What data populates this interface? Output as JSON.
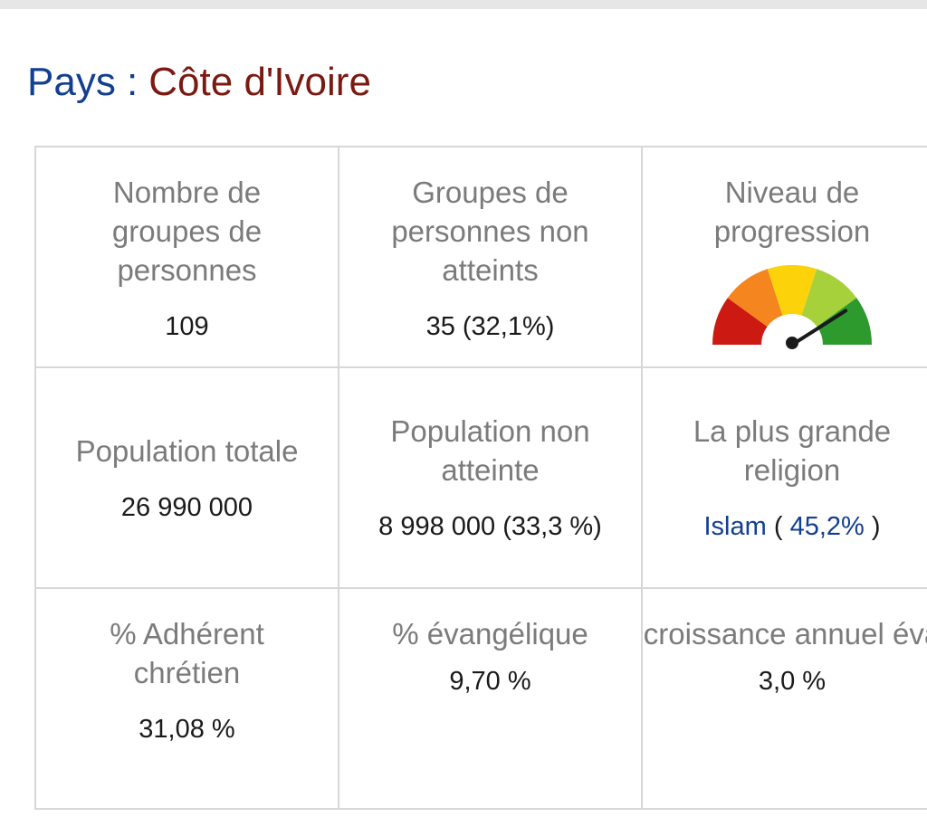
{
  "header": {
    "label": "Pays :",
    "country": "Côte d'Ivoire"
  },
  "stats": {
    "people_groups": {
      "title": "Nombre de\ngroupes de\npersonnes",
      "value": "109"
    },
    "unreached_groups": {
      "title": "Groupes de\npersonnes non\natteints",
      "value": "35 (32,1%)"
    },
    "progress": {
      "title": "Niveau de\nprogression",
      "gauge_level": 0.82,
      "gauge_colors": [
        "#cc1a12",
        "#f5851f",
        "#fcd20b",
        "#a6d13b",
        "#2c9a2c"
      ],
      "needle_color": "#1a1a1a",
      "gauge_icon": "progress-gauge-icon"
    },
    "total_population": {
      "title": "Population totale",
      "value": "26 990 000"
    },
    "unreached_population": {
      "title": "Population non\natteinte",
      "value": "8 998 000 (33,3 %)"
    },
    "largest_religion": {
      "title": "La plus grande\nreligion",
      "religion": "Islam",
      "open_paren": "(",
      "percent": "45,2%",
      "close_paren": ")"
    },
    "christian_adherent": {
      "title": "% Adhérent\nchrétien",
      "value": "31,08 %"
    },
    "evangelical": {
      "title": "% évangélique",
      "value": "9,70 %"
    },
    "evangelical_growth": {
      "title": "Taux de\ncroissance annuel\névangélique",
      "value": "3,0 %"
    }
  }
}
